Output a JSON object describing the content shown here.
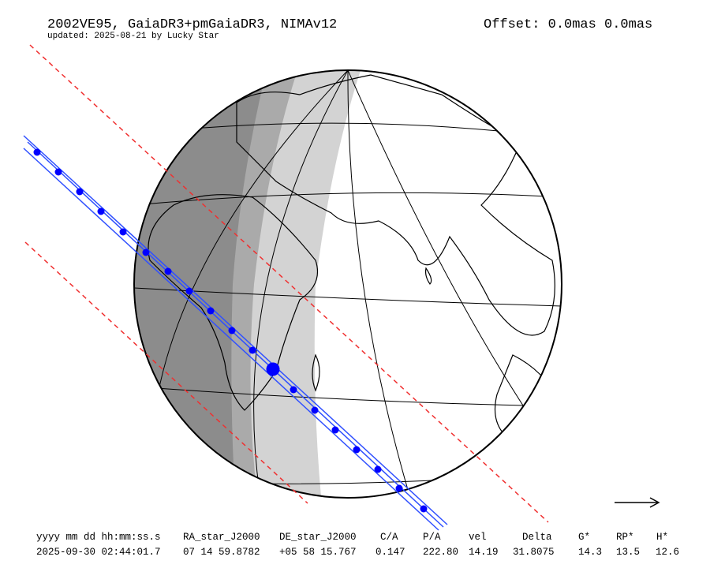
{
  "header": {
    "title": "2002VE95, GaiaDR3+pmGaiaDR3, NIMAv12",
    "subtitle": "updated: 2025-08-21 by Lucky Star",
    "offset": "Offset: 0.0mas 0.0mas"
  },
  "table": {
    "columns": [
      "yyyy mm dd hh:mm:ss.s",
      "RA_star_J2000",
      "DE_star_J2000",
      "C/A",
      "P/A",
      "vel",
      "Delta",
      "G*",
      "RP*",
      "H*"
    ],
    "rows": [
      [
        "2025-09-30 02:44:01.7",
        "07 14 59.8782",
        "+05 58 15.767",
        "0.147",
        "222.80",
        "14.19",
        "31.8075",
        "14.3",
        "13.5",
        "12.6"
      ]
    ]
  }
}
